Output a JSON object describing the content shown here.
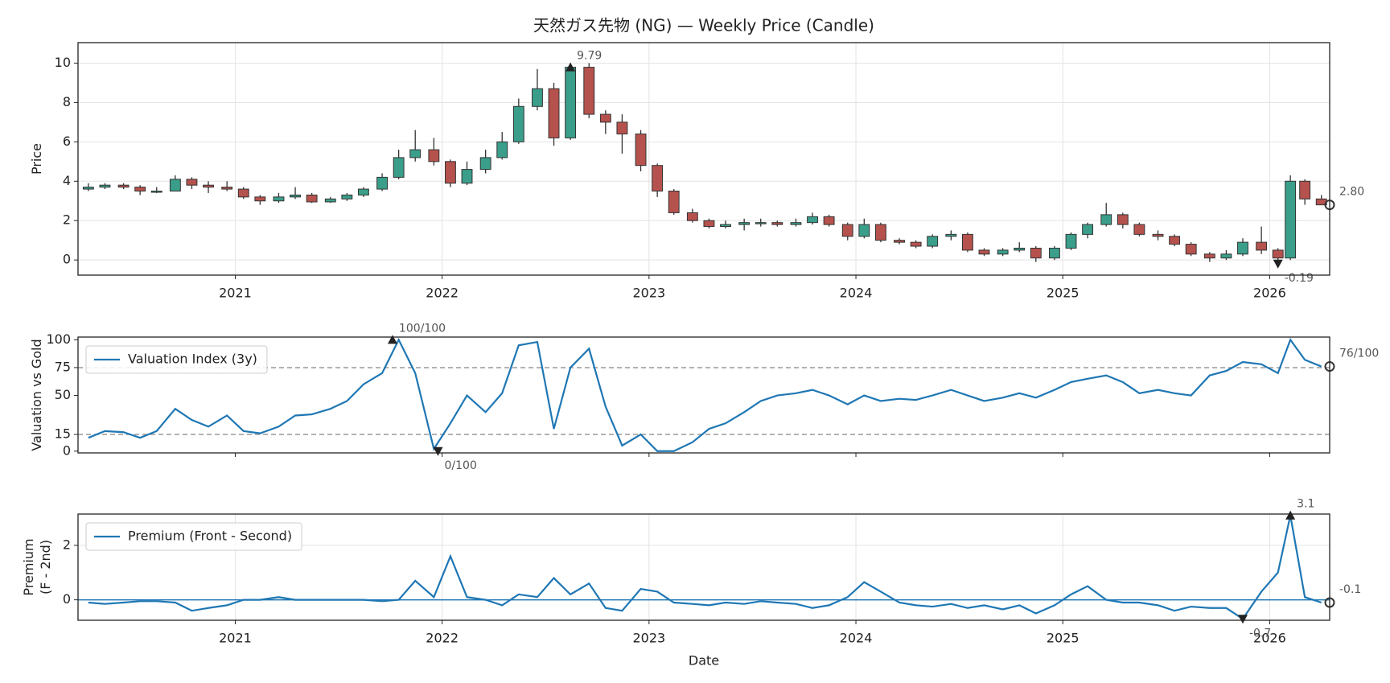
{
  "chart_data": [
    {
      "type": "candlestick",
      "title": "天然ガス先物 (NG) — Weekly Price (Candle)",
      "ylabel": [
        "Price"
      ],
      "x": [
        2020.29,
        2020.37,
        2020.46,
        2020.54,
        2020.62,
        2020.71,
        2020.79,
        2020.87,
        2020.96,
        2021.04,
        2021.12,
        2021.21,
        2021.29,
        2021.37,
        2021.46,
        2021.54,
        2021.62,
        2021.71,
        2021.79,
        2021.87,
        2021.96,
        2022.04,
        2022.12,
        2022.21,
        2022.29,
        2022.37,
        2022.46,
        2022.54,
        2022.62,
        2022.71,
        2022.79,
        2022.87,
        2022.96,
        2023.04,
        2023.12,
        2023.21,
        2023.29,
        2023.37,
        2023.46,
        2023.54,
        2023.62,
        2023.71,
        2023.79,
        2023.87,
        2023.96,
        2024.04,
        2024.12,
        2024.21,
        2024.29,
        2024.37,
        2024.46,
        2024.54,
        2024.62,
        2024.71,
        2024.79,
        2024.87,
        2024.96,
        2025.04,
        2025.12,
        2025.21,
        2025.29,
        2025.37,
        2025.46,
        2025.54,
        2025.62,
        2025.71,
        2025.79,
        2025.87,
        2025.96,
        2026.04,
        2026.1,
        2026.17,
        2026.25
      ],
      "open": [
        3.6,
        3.7,
        3.8,
        3.7,
        3.5,
        3.5,
        4.1,
        3.8,
        3.7,
        3.6,
        3.2,
        3.0,
        3.2,
        3.3,
        2.95,
        3.1,
        3.3,
        3.6,
        4.2,
        5.2,
        5.6,
        5.0,
        3.9,
        4.6,
        5.2,
        6.0,
        7.8,
        8.7,
        6.2,
        9.79,
        7.4,
        7.0,
        6.4,
        4.8,
        3.5,
        2.4,
        2.0,
        1.7,
        1.8,
        1.9,
        1.9,
        1.8,
        1.9,
        2.2,
        1.8,
        1.2,
        1.8,
        1.0,
        0.9,
        0.7,
        1.2,
        1.3,
        0.5,
        0.3,
        0.5,
        0.6,
        0.1,
        0.6,
        1.3,
        1.8,
        2.3,
        1.8,
        1.3,
        1.2,
        0.8,
        0.3,
        0.1,
        0.3,
        0.9,
        0.5,
        0.1,
        4.0,
        3.1
      ],
      "high": [
        3.9,
        3.9,
        3.9,
        3.8,
        3.7,
        4.3,
        4.2,
        4.0,
        4.0,
        3.7,
        3.3,
        3.4,
        3.7,
        3.4,
        3.2,
        3.4,
        3.7,
        4.4,
        5.6,
        6.6,
        6.2,
        5.1,
        5.0,
        5.6,
        6.5,
        8.2,
        9.7,
        9.0,
        9.9,
        10.0,
        7.6,
        7.4,
        6.6,
        4.9,
        3.6,
        2.6,
        2.1,
        2.0,
        2.1,
        2.1,
        2.0,
        2.1,
        2.4,
        2.3,
        1.9,
        2.1,
        1.9,
        1.1,
        1.0,
        1.3,
        1.5,
        1.4,
        0.6,
        0.6,
        0.9,
        0.7,
        0.7,
        1.4,
        1.9,
        2.9,
        2.4,
        1.9,
        1.5,
        1.3,
        0.9,
        0.4,
        0.5,
        1.1,
        1.7,
        0.6,
        4.3,
        4.1,
        3.3
      ],
      "low": [
        3.5,
        3.6,
        3.6,
        3.3,
        3.4,
        3.5,
        3.6,
        3.4,
        3.5,
        3.1,
        2.8,
        2.9,
        3.1,
        2.9,
        2.9,
        3.0,
        3.2,
        3.5,
        4.1,
        5.0,
        4.8,
        3.7,
        3.8,
        4.4,
        5.1,
        5.9,
        7.6,
        5.8,
        6.1,
        7.2,
        6.4,
        5.4,
        4.5,
        3.2,
        2.3,
        1.9,
        1.6,
        1.6,
        1.5,
        1.7,
        1.7,
        1.7,
        1.8,
        1.7,
        1.0,
        1.1,
        0.9,
        0.8,
        0.6,
        0.6,
        1.0,
        0.4,
        0.2,
        0.2,
        0.4,
        -0.1,
        0.0,
        0.5,
        1.1,
        1.7,
        1.6,
        1.2,
        1.0,
        0.7,
        0.2,
        -0.1,
        0.0,
        0.2,
        0.3,
        -0.19,
        0.0,
        2.8,
        2.8
      ],
      "close": [
        3.7,
        3.8,
        3.7,
        3.5,
        3.5,
        4.1,
        3.8,
        3.7,
        3.6,
        3.2,
        3.0,
        3.2,
        3.3,
        2.95,
        3.1,
        3.3,
        3.6,
        4.2,
        5.2,
        5.6,
        5.0,
        3.9,
        4.6,
        5.2,
        6.0,
        7.8,
        8.7,
        6.2,
        9.79,
        7.4,
        7.0,
        6.4,
        4.8,
        3.5,
        2.4,
        2.0,
        1.7,
        1.8,
        1.9,
        1.9,
        1.8,
        1.9,
        2.2,
        1.8,
        1.2,
        1.8,
        1.0,
        0.9,
        0.7,
        1.2,
        1.3,
        0.5,
        0.3,
        0.5,
        0.6,
        0.1,
        0.6,
        1.3,
        1.8,
        2.3,
        1.8,
        1.3,
        1.2,
        0.8,
        0.3,
        0.1,
        0.3,
        0.9,
        0.5,
        0.1,
        4.0,
        3.1,
        2.8
      ],
      "up_color": "#3a9e8a",
      "down_color": "#b5524e",
      "edge_color": "#333333",
      "xlim": [
        2020.24,
        2026.29
      ],
      "xticks": [
        2021,
        2022,
        2023,
        2024,
        2025,
        2026
      ],
      "show_xtick_labels": true,
      "ylim": [
        -0.77,
        11.04
      ],
      "yticks": [
        0,
        2,
        4,
        6,
        8,
        10
      ],
      "grid": true,
      "markers": [
        {
          "x": 2022.62,
          "value": 9.79,
          "label": "9.79",
          "marker": "up",
          "label_side": "above"
        },
        {
          "x": 2026.04,
          "value": -0.19,
          "label": "-0.19",
          "marker": "down",
          "label_side": "below"
        },
        {
          "x": 2026.29,
          "value": 2.8,
          "label": "2.80",
          "marker": "circle",
          "label_side": "right"
        }
      ]
    },
    {
      "type": "line",
      "ylabel": [
        "Valuation vs Gold"
      ],
      "x": [
        2020.29,
        2020.37,
        2020.46,
        2020.54,
        2020.62,
        2020.71,
        2020.79,
        2020.87,
        2020.96,
        2021.04,
        2021.12,
        2021.21,
        2021.29,
        2021.37,
        2021.46,
        2021.54,
        2021.62,
        2021.71,
        2021.79,
        2021.87,
        2021.96,
        2022.04,
        2022.12,
        2022.21,
        2022.29,
        2022.37,
        2022.46,
        2022.54,
        2022.62,
        2022.71,
        2022.79,
        2022.87,
        2022.96,
        2023.04,
        2023.12,
        2023.21,
        2023.29,
        2023.37,
        2023.46,
        2023.54,
        2023.62,
        2023.71,
        2023.79,
        2023.87,
        2023.96,
        2024.04,
        2024.12,
        2024.21,
        2024.29,
        2024.37,
        2024.46,
        2024.54,
        2024.62,
        2024.71,
        2024.79,
        2024.87,
        2024.96,
        2025.04,
        2025.12,
        2025.21,
        2025.29,
        2025.37,
        2025.46,
        2025.54,
        2025.62,
        2025.71,
        2025.79,
        2025.87,
        2025.96,
        2026.04,
        2026.1,
        2026.17,
        2026.25
      ],
      "series": [
        {
          "name": "Valuation Index (3y)",
          "color": "#1f77b4",
          "values": [
            12,
            18,
            17,
            12,
            18,
            38,
            28,
            22,
            32,
            18,
            16,
            22,
            32,
            33,
            38,
            45,
            60,
            70,
            100,
            70,
            2,
            25,
            50,
            35,
            52,
            95,
            98,
            20,
            75,
            92,
            40,
            5,
            15,
            0,
            0,
            8,
            20,
            25,
            35,
            45,
            50,
            52,
            55,
            50,
            42,
            50,
            45,
            47,
            46,
            50,
            55,
            50,
            45,
            48,
            52,
            48,
            55,
            62,
            65,
            68,
            62,
            52,
            55,
            52,
            50,
            68,
            72,
            80,
            78,
            70,
            100,
            82,
            76
          ]
        }
      ],
      "xlim": [
        2020.24,
        2026.29
      ],
      "xticks": [
        2021,
        2022,
        2023,
        2024,
        2025,
        2026
      ],
      "show_xtick_labels": false,
      "ylim": [
        -1.6,
        102.4
      ],
      "yticks": [
        0,
        15,
        50,
        75,
        100
      ],
      "grid": false,
      "hlines": [
        {
          "value": 15,
          "style": "dashed",
          "color": "#999999"
        },
        {
          "value": 75,
          "style": "dashed",
          "color": "#999999"
        }
      ],
      "legend": "upper left",
      "markers": [
        {
          "x": 2021.76,
          "value": 100,
          "label": "100/100",
          "marker": "up",
          "label_side": "above"
        },
        {
          "x": 2021.98,
          "value": 0,
          "label": "0/100",
          "marker": "down",
          "label_side": "below"
        },
        {
          "x": 2026.29,
          "value": 76,
          "label": "76/100",
          "marker": "circle",
          "label_side": "right"
        }
      ]
    },
    {
      "type": "line",
      "ylabel": [
        "Premium",
        "(F - 2nd)"
      ],
      "xlabel": "Date",
      "x": [
        2020.29,
        2020.37,
        2020.46,
        2020.54,
        2020.62,
        2020.71,
        2020.79,
        2020.87,
        2020.96,
        2021.04,
        2021.12,
        2021.21,
        2021.29,
        2021.37,
        2021.46,
        2021.54,
        2021.62,
        2021.71,
        2021.79,
        2021.87,
        2021.96,
        2022.04,
        2022.12,
        2022.21,
        2022.29,
        2022.37,
        2022.46,
        2022.54,
        2022.62,
        2022.71,
        2022.79,
        2022.87,
        2022.96,
        2023.04,
        2023.12,
        2023.21,
        2023.29,
        2023.37,
        2023.46,
        2023.54,
        2023.62,
        2023.71,
        2023.79,
        2023.87,
        2023.96,
        2024.04,
        2024.12,
        2024.21,
        2024.29,
        2024.37,
        2024.46,
        2024.54,
        2024.62,
        2024.71,
        2024.79,
        2024.87,
        2024.96,
        2025.04,
        2025.12,
        2025.21,
        2025.29,
        2025.37,
        2025.46,
        2025.54,
        2025.62,
        2025.71,
        2025.79,
        2025.87,
        2025.96,
        2026.04,
        2026.1,
        2026.17,
        2026.25
      ],
      "series": [
        {
          "name": "Premium (Front - Second)",
          "color": "#1f77b4",
          "values": [
            -0.1,
            -0.15,
            -0.1,
            -0.05,
            -0.05,
            -0.1,
            -0.4,
            -0.3,
            -0.2,
            0,
            0,
            0.1,
            0,
            0,
            0,
            0,
            0,
            -0.05,
            0,
            0.7,
            0.1,
            1.6,
            0.1,
            0,
            -0.2,
            0.2,
            0.1,
            0.8,
            0.2,
            0.6,
            -0.3,
            -0.4,
            0.4,
            0.3,
            -0.1,
            -0.15,
            -0.2,
            -0.1,
            -0.15,
            -0.05,
            -0.1,
            -0.15,
            -0.3,
            -0.2,
            0.1,
            0.65,
            0.3,
            -0.1,
            -0.2,
            -0.25,
            -0.15,
            -0.3,
            -0.2,
            -0.35,
            -0.2,
            -0.5,
            -0.2,
            0.2,
            0.5,
            0,
            -0.1,
            -0.1,
            -0.2,
            -0.4,
            -0.25,
            -0.3,
            -0.3,
            -0.7,
            0.3,
            1.0,
            3.1,
            0.1,
            -0.1
          ]
        }
      ],
      "xlim": [
        2020.24,
        2026.29
      ],
      "xticks": [
        2021,
        2022,
        2023,
        2024,
        2025,
        2026
      ],
      "show_xtick_labels": true,
      "ylim": [
        -0.75,
        3.15
      ],
      "yticks": [
        0,
        2
      ],
      "grid": true,
      "hlines": [
        {
          "value": 0,
          "style": "solid",
          "color": "#1f77b4"
        }
      ],
      "legend": "upper left",
      "markers": [
        {
          "x": 2026.1,
          "value": 3.1,
          "label": "3.1",
          "marker": "up",
          "label_side": "above"
        },
        {
          "x": 2025.87,
          "value": -0.7,
          "label": "-0.7",
          "marker": "down",
          "label_side": "below"
        },
        {
          "x": 2026.29,
          "value": -0.1,
          "label": "-0.1",
          "marker": "circle",
          "label_side": "right"
        }
      ]
    }
  ]
}
